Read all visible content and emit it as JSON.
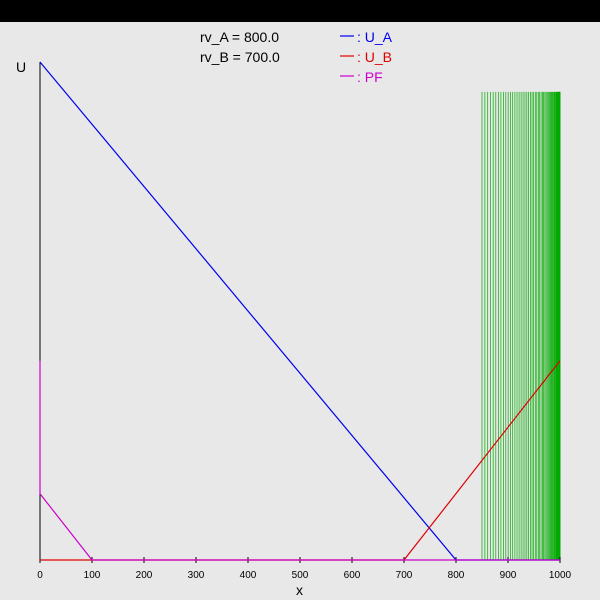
{
  "window": {
    "title": ""
  },
  "params": [
    {
      "label": "rv_A = 800.0"
    },
    {
      "label": "rv_B = 700.0"
    }
  ],
  "chart_data": {
    "type": "line",
    "title": "",
    "xlabel": "x",
    "ylabel": "U",
    "xlim": [
      0,
      1000
    ],
    "ylim": [
      0,
      1000
    ],
    "xticks": [
      0,
      100,
      200,
      300,
      400,
      500,
      600,
      700,
      800,
      900,
      1000
    ],
    "grid": false,
    "legend": "top-center",
    "series": [
      {
        "name": ": U_A",
        "color": "#0000ee",
        "x": [
          0,
          800,
          1000
        ],
        "y": [
          1000,
          0,
          0
        ]
      },
      {
        "name": ": U_B",
        "color": "#dd0000",
        "x": [
          0,
          700,
          1000
        ],
        "y": [
          0,
          0,
          400
        ]
      },
      {
        "name": ": PF",
        "color": "#cc00cc",
        "x": [
          0,
          0,
          100,
          1000
        ],
        "y": [
          400,
          133,
          0,
          0
        ]
      }
    ],
    "green_lines": {
      "color": "#00aa00",
      "x_start": 850,
      "x_end": 1000,
      "y_top": 940,
      "count": 60
    }
  }
}
